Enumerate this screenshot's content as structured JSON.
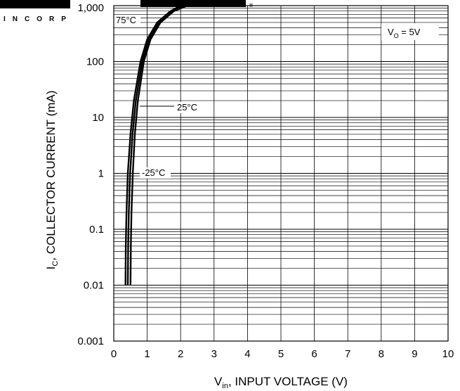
{
  "chart_data": {
    "type": "line",
    "xlabel": "V_in, INPUT VOLTAGE (V)",
    "ylabel": "I_C, COLLECTOR CURRENT (mA)",
    "xlim": [
      0,
      10
    ],
    "ylim": [
      0.001,
      1000
    ],
    "yscale": "log",
    "grid": true,
    "x_ticks": [
      "0",
      "1",
      "2",
      "3",
      "4",
      "5",
      "6",
      "7",
      "8",
      "9",
      "10"
    ],
    "y_ticks": [
      "0.001",
      "0.01",
      "0.1",
      "1",
      "10",
      "100",
      "1,000"
    ],
    "condition": "V_O = 5V",
    "series": [
      {
        "name": "75°C",
        "x": [
          0.35,
          0.36,
          0.38,
          0.42,
          0.5,
          0.6,
          0.8,
          1.0,
          1.3,
          1.7,
          2.0
        ],
        "y": [
          0.01,
          0.05,
          0.2,
          1,
          5,
          20,
          100,
          250,
          500,
          800,
          1000
        ]
      },
      {
        "name": "25°C",
        "x": [
          0.42,
          0.43,
          0.45,
          0.49,
          0.56,
          0.66,
          0.85,
          1.05,
          1.35,
          1.75,
          2.1
        ],
        "y": [
          0.01,
          0.05,
          0.2,
          1,
          5,
          20,
          100,
          250,
          500,
          800,
          1000
        ]
      },
      {
        "name": "-25°C",
        "x": [
          0.5,
          0.51,
          0.53,
          0.57,
          0.63,
          0.72,
          0.9,
          1.1,
          1.4,
          1.8,
          2.2
        ],
        "y": [
          0.01,
          0.05,
          0.2,
          1,
          5,
          20,
          100,
          250,
          500,
          800,
          1000
        ]
      }
    ]
  },
  "logo": {
    "letters": "INCORPORATED",
    "mark": "®"
  },
  "colors": {
    "line": "#000000",
    "grid": "#000000",
    "background": "#ffffff"
  }
}
